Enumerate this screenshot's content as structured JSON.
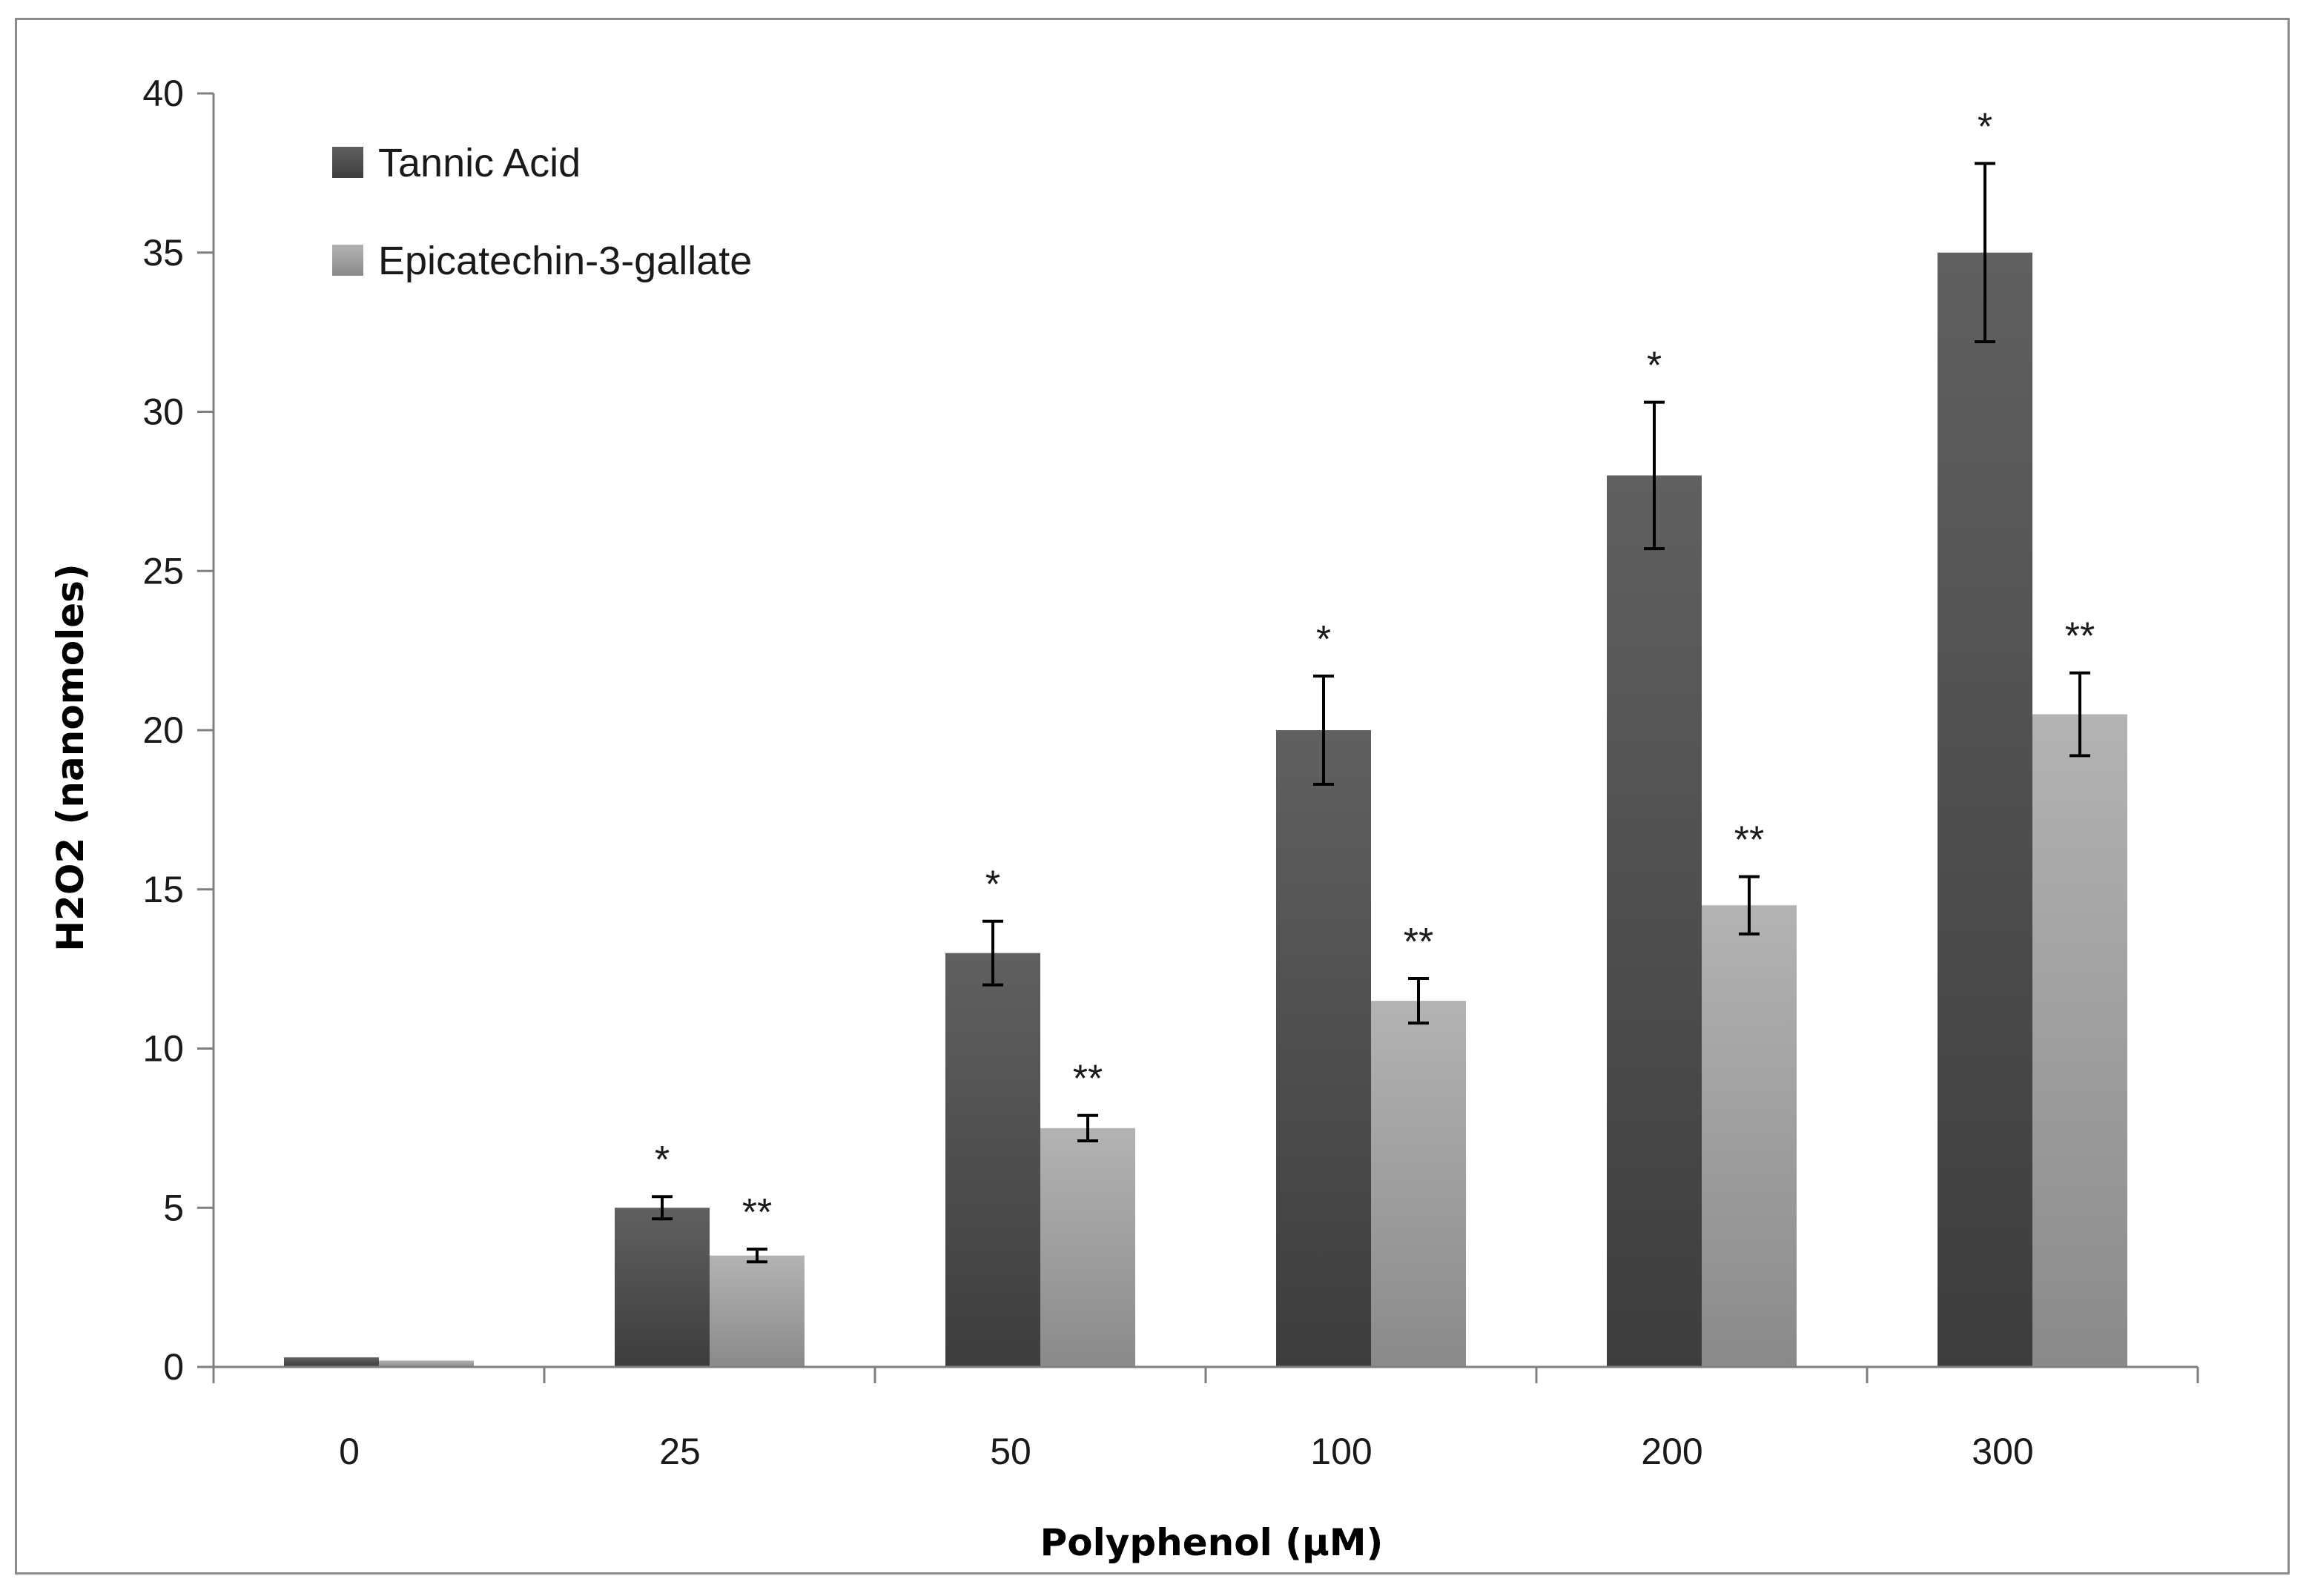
{
  "chart_data": {
    "type": "bar",
    "title": "",
    "xlabel": "Polyphenol (µM)",
    "ylabel": "H2O2 (nanomoles)",
    "categories": [
      "0",
      "25",
      "50",
      "100",
      "200",
      "300"
    ],
    "ylim": [
      0,
      40
    ],
    "yticks": [
      "0",
      "5",
      "10",
      "15",
      "20",
      "25",
      "30",
      "35",
      "40"
    ],
    "grid": false,
    "legend_position": "top-left",
    "series": [
      {
        "name": "Tannic Acid",
        "color": "#595959",
        "values": [
          0.3,
          5.0,
          13.0,
          20.0,
          28.0,
          35.0
        ],
        "errors": [
          0,
          0.35,
          1.0,
          1.7,
          2.3,
          2.8
        ],
        "significance": [
          "",
          "*",
          "*",
          "*",
          "*",
          "*"
        ]
      },
      {
        "name": "Epicatechin-3-gallate",
        "color": "#a6a6a6",
        "values": [
          0.2,
          3.5,
          7.5,
          11.5,
          14.5,
          20.5
        ],
        "errors": [
          0,
          0.2,
          0.4,
          0.7,
          0.9,
          1.3
        ],
        "significance": [
          "",
          "**",
          "**",
          "**",
          "**",
          "**"
        ]
      }
    ]
  }
}
